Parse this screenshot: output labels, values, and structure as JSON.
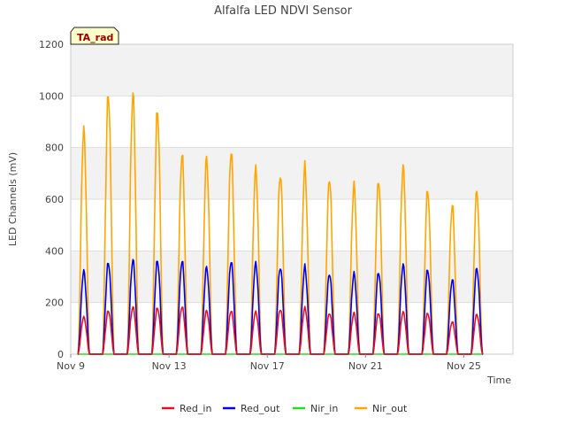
{
  "chart_data": {
    "type": "line",
    "title": "Alfalfa LED NDVI Sensor",
    "xlabel": "Time",
    "ylabel": "LED Channels (mV)",
    "site_badge": "TA_rad",
    "ylim": [
      0,
      1200
    ],
    "xlim": [
      9.0,
      27.0
    ],
    "yticks": [
      0,
      200,
      400,
      600,
      800,
      1000,
      1200
    ],
    "xticks": [
      {
        "value": 9,
        "label": "Nov 9"
      },
      {
        "value": 13,
        "label": "Nov 13"
      },
      {
        "value": 17,
        "label": "Nov 17"
      },
      {
        "value": 21,
        "label": "Nov 21"
      },
      {
        "value": 25,
        "label": "Nov 25"
      }
    ],
    "grid": true,
    "shaded_bands": [
      [
        200,
        400
      ],
      [
        600,
        800
      ],
      [
        1000,
        1200
      ]
    ],
    "legend_position": "bottom",
    "series_note": "Daily diurnal peaks in mV; x = day of November (fractional day = time of day). Each day ramps up from ~0 around 07:00 to the listed peak near 13:00 and back to ~0 around 18:00.",
    "days": [
      9.63,
      10.63,
      11.63,
      12.63,
      13.63,
      14.63,
      15.63,
      16.63,
      17.63,
      18.63,
      19.63,
      20.63,
      21.63,
      22.63,
      23.63,
      24.63,
      25.63
    ],
    "series": [
      {
        "name": "Red_in",
        "color": "#e8101a",
        "peaks": [
          150,
          175,
          190,
          185,
          190,
          175,
          175,
          170,
          180,
          185,
          165,
          165,
          165,
          170,
          165,
          130,
          160
        ]
      },
      {
        "name": "Red_out",
        "color": "#0000ee",
        "peaks": [
          335,
          370,
          380,
          375,
          375,
          350,
          375,
          365,
          350,
          350,
          325,
          325,
          330,
          360,
          340,
          300,
          345
        ]
      },
      {
        "name": "Nir_in",
        "color": "#22dd22",
        "peaks": [
          0,
          0,
          0,
          0,
          0,
          0,
          0,
          0,
          0,
          0,
          0,
          0,
          0,
          0,
          0,
          0,
          0
        ]
      },
      {
        "name": "Nir_out",
        "color": "#ffa500",
        "peaks": [
          905,
          1050,
          1050,
          975,
          805,
          790,
          820,
          745,
          725,
          750,
          710,
          680,
          700,
          755,
          660,
          600,
          655
        ]
      }
    ]
  }
}
